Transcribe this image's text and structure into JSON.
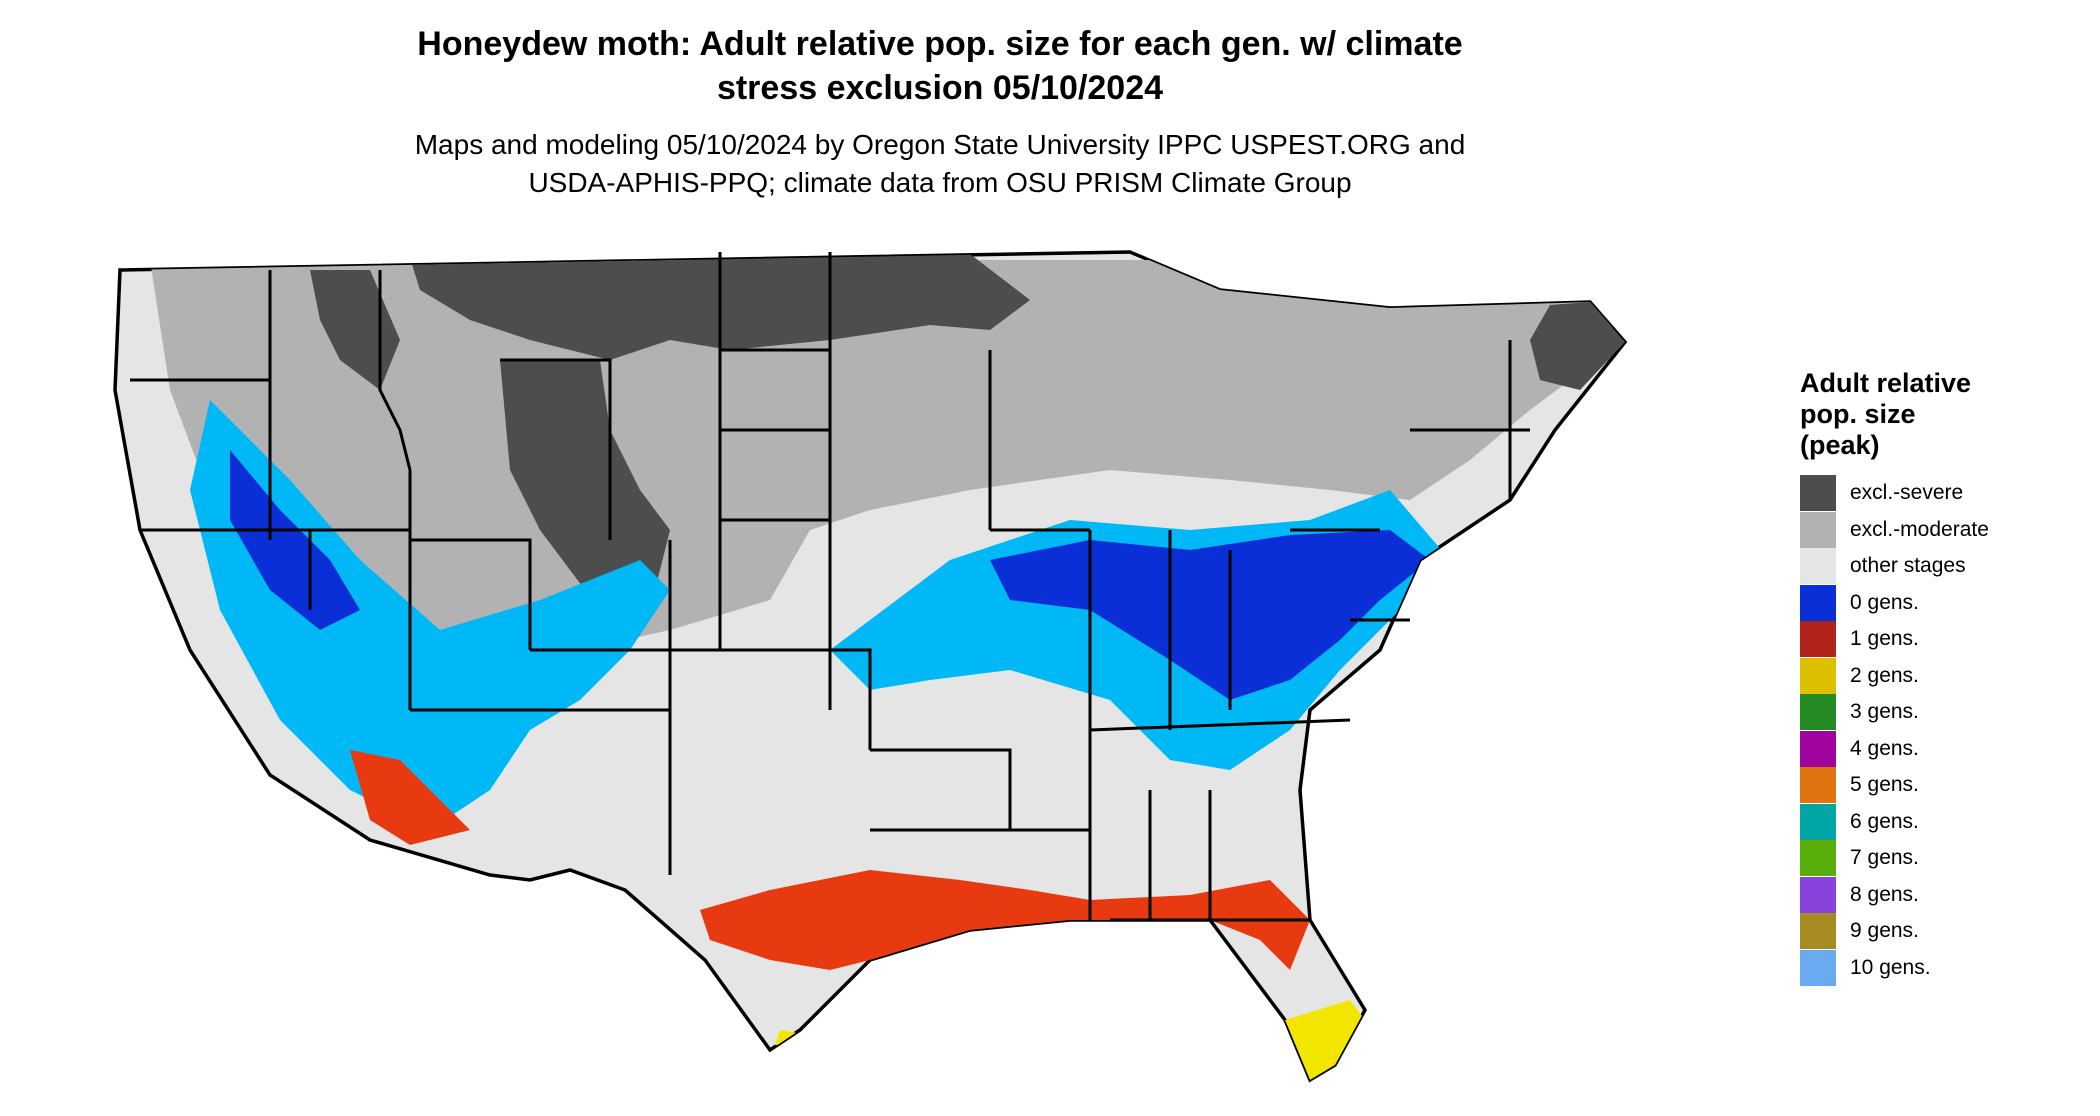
{
  "title": {
    "line1": "Honeydew moth: Adult relative pop. size for each gen. w/ climate",
    "line2": "stress exclusion 05/10/2024"
  },
  "subtitle": {
    "line1": "Maps and modeling 05/10/2024 by Oregon State University IPPC USPEST.ORG and",
    "line2": "USDA-APHIS-PPQ; climate data from OSU PRISM Climate Group"
  },
  "legend": {
    "title_line1": "Adult relative",
    "title_line2": "pop. size",
    "title_line3": "(peak)",
    "items": [
      {
        "label": "excl.-severe",
        "color": "#4d4d4d"
      },
      {
        "label": "excl.-moderate",
        "color": "#b2b2b2"
      },
      {
        "label": "other stages",
        "color": "#e5e5e5"
      },
      {
        "label": "0 gens.",
        "color": "#0a2fd6"
      },
      {
        "label": "1 gens.",
        "color": "#b0221a"
      },
      {
        "label": "2 gens.",
        "color": "#dcc000"
      },
      {
        "label": "3 gens.",
        "color": "#238b22"
      },
      {
        "label": "4 gens.",
        "color": "#a0049f"
      },
      {
        "label": "5 gens.",
        "color": "#dd7410"
      },
      {
        "label": "6 gens.",
        "color": "#00a6a6"
      },
      {
        "label": "7 gens.",
        "color": "#5aae0c"
      },
      {
        "label": "8 gens.",
        "color": "#8a42dc"
      },
      {
        "label": "9 gens.",
        "color": "#a68b22"
      },
      {
        "label": "10 gens.",
        "color": "#6aaaf0"
      }
    ]
  },
  "map_colors": {
    "other_stages": "#e5e5e5",
    "excl_moderate": "#b2b2b2",
    "excl_severe": "#4d4d4d",
    "zero_gens_dark": "#0a2fd6",
    "zero_gens_light": "#00b8f5",
    "one_gens_red": "#e83a10",
    "two_gens_yellow": "#f2e600",
    "border": "#000000"
  }
}
